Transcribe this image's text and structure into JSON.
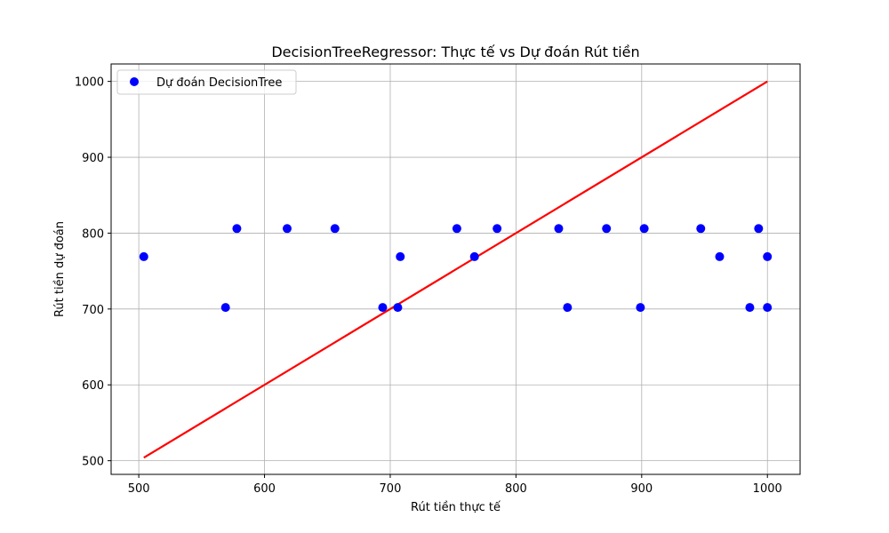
{
  "chart_data": {
    "type": "scatter",
    "title": "DecisionTreeRegressor: Thực tế vs Dự đoán Rút tiền",
    "xlabel": "Rút tiền thực tế",
    "ylabel": "Rút tiền dự đoán",
    "xlim": [
      478,
      1026
    ],
    "ylim": [
      482,
      1023
    ],
    "xticks": [
      500,
      600,
      700,
      800,
      900,
      1000
    ],
    "yticks": [
      500,
      600,
      700,
      800,
      900,
      1000
    ],
    "grid": true,
    "legend": {
      "placement": "top-left"
    },
    "series": [
      {
        "name": "Dự đoán DecisionTree",
        "kind": "scatter",
        "color": "#0000ff",
        "x": [
          504,
          569,
          578,
          618,
          656,
          694,
          706,
          708,
          753,
          767,
          785,
          834,
          841,
          872,
          899,
          902,
          947,
          962,
          986,
          993,
          1000,
          1000
        ],
        "y": [
          769,
          702,
          806,
          806,
          806,
          702,
          702,
          769,
          806,
          769,
          806,
          806,
          702,
          806,
          702,
          806,
          806,
          769,
          702,
          806,
          769,
          702
        ]
      },
      {
        "kind": "line",
        "color": "#ff0000",
        "x": [
          504,
          1000
        ],
        "y": [
          504,
          1000
        ]
      }
    ]
  }
}
